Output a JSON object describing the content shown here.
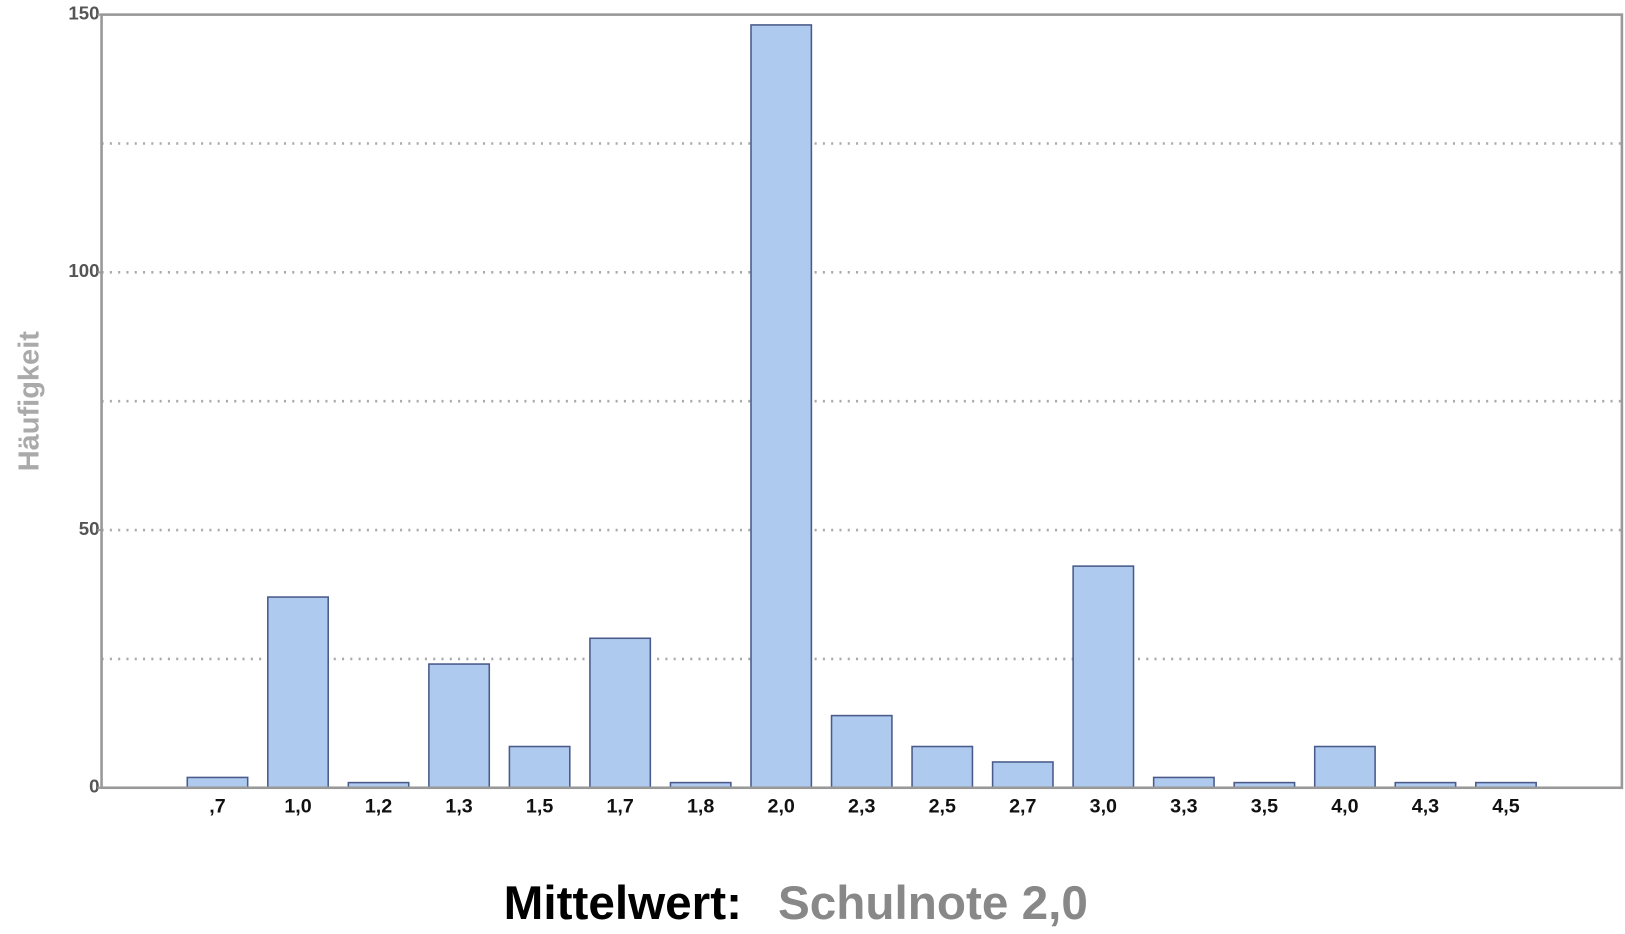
{
  "chart_data": {
    "type": "bar",
    "y_label": "Häufigkeit",
    "footer_label": "Mittelwert:",
    "footer_value": "Schulnote 2,0",
    "categories": [
      ",7",
      "1,0",
      "1,2",
      "1,3",
      "1,5",
      "1,7",
      "1,8",
      "2,0",
      "2,3",
      "2,5",
      "2,7",
      "3,0",
      "3,3",
      "3,5",
      "4,0",
      "4,3",
      "4,5"
    ],
    "values": [
      2,
      37,
      1,
      24,
      8,
      29,
      1,
      148,
      14,
      8,
      5,
      43,
      2,
      1,
      8,
      1,
      1
    ],
    "color": "#aecbef",
    "ylim": [
      0,
      150
    ],
    "yticks": [
      0,
      50,
      100,
      150
    ],
    "grid_lines": [
      25,
      50,
      75,
      100,
      125
    ],
    "grid": true
  }
}
